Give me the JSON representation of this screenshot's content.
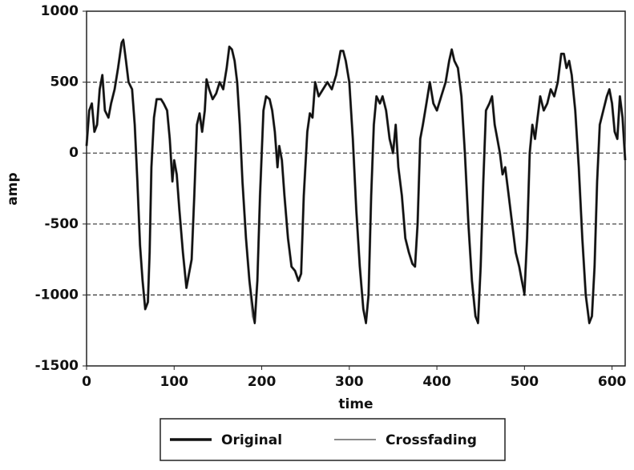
{
  "chart_data": {
    "type": "line",
    "xlabel": "time",
    "ylabel": "amp",
    "xlim": [
      0,
      615
    ],
    "ylim": [
      -1500,
      1000
    ],
    "xticks": [
      0,
      100,
      200,
      300,
      400,
      500,
      600
    ],
    "yticks": [
      -1500,
      -1000,
      -500,
      0,
      500,
      1000
    ],
    "grid": true,
    "legend": "bottom",
    "x": [
      0,
      3,
      6,
      9,
      12,
      15,
      18,
      21,
      25,
      28,
      32,
      36,
      40,
      42,
      45,
      48,
      52,
      55,
      58,
      61,
      64,
      67,
      70,
      72,
      74,
      77,
      80,
      85,
      88,
      92,
      95,
      98,
      100,
      103,
      106,
      110,
      114,
      117,
      120,
      123,
      126,
      129,
      132,
      135,
      137,
      140,
      144,
      148,
      152,
      156,
      160,
      163,
      166,
      169,
      172,
      175,
      178,
      182,
      186,
      190,
      192,
      195,
      198,
      202,
      205,
      209,
      212,
      215,
      218,
      220,
      223,
      226,
      230,
      234,
      238,
      242,
      245,
      248,
      252,
      255,
      258,
      261,
      265,
      270,
      275,
      280,
      285,
      290,
      293,
      296,
      300,
      304,
      308,
      312,
      316,
      319,
      322,
      325,
      328,
      331,
      335,
      338,
      342,
      346,
      350,
      353,
      356,
      360,
      364,
      368,
      372,
      375,
      378,
      381,
      384,
      388,
      392,
      396,
      400,
      405,
      410,
      414,
      417,
      420,
      424,
      428,
      432,
      436,
      440,
      444,
      447,
      450,
      453,
      456,
      460,
      463,
      466,
      469,
      472,
      475,
      478,
      482,
      486,
      490,
      494,
      497,
      500,
      503,
      506,
      509,
      512,
      515,
      518,
      522,
      526,
      530,
      534,
      538,
      542,
      545,
      548,
      551,
      554,
      558,
      562,
      566,
      570,
      574,
      577,
      580,
      583,
      586,
      590,
      594,
      597,
      600,
      603,
      606,
      609,
      612,
      615
    ],
    "series": [
      {
        "name": "Crossfading",
        "color": "#8a8a8a",
        "values": [
          50,
          300,
          350,
          150,
          200,
          450,
          550,
          300,
          250,
          350,
          450,
          600,
          770,
          790,
          650,
          500,
          450,
          200,
          -200,
          -650,
          -900,
          -1100,
          -1050,
          -700,
          -100,
          250,
          380,
          380,
          350,
          300,
          100,
          -200,
          -50,
          -150,
          -400,
          -700,
          -950,
          -850,
          -750,
          -300,
          200,
          280,
          150,
          300,
          520,
          450,
          380,
          420,
          500,
          450,
          600,
          750,
          730,
          650,
          500,
          200,
          -200,
          -600,
          -900,
          -1150,
          -1190,
          -900,
          -300,
          300,
          400,
          380,
          300,
          150,
          -100,
          50,
          -50,
          -300,
          -600,
          -800,
          -830,
          -900,
          -850,
          -300,
          150,
          280,
          250,
          500,
          400,
          450,
          500,
          450,
          550,
          720,
          720,
          650,
          500,
          100,
          -400,
          -800,
          -1100,
          -1190,
          -1000,
          -300,
          200,
          400,
          350,
          400,
          300,
          100,
          0,
          200,
          -100,
          -300,
          -600,
          -700,
          -780,
          -800,
          -500,
          100,
          200,
          350,
          500,
          350,
          300,
          400,
          500,
          650,
          730,
          650,
          600,
          400,
          0,
          -500,
          -900,
          -1150,
          -1190,
          -800,
          -200,
          300,
          350,
          400,
          200,
          100,
          0,
          -150,
          -100,
          -300,
          -500,
          -700,
          -800,
          -900,
          -980,
          -600,
          0,
          200,
          100,
          250,
          400,
          300,
          350,
          450,
          400,
          500,
          700,
          700,
          600,
          650,
          550,
          300,
          -100,
          -600,
          -1000,
          -1190,
          -1150,
          -800,
          -200,
          200,
          300,
          400,
          450,
          350,
          150,
          100,
          400,
          250,
          -50
        ]
      },
      {
        "name": "Original",
        "color": "#111111",
        "values": [
          50,
          300,
          350,
          150,
          200,
          450,
          550,
          300,
          250,
          350,
          450,
          600,
          780,
          800,
          650,
          500,
          450,
          200,
          -200,
          -650,
          -900,
          -1100,
          -1050,
          -700,
          -100,
          250,
          380,
          380,
          350,
          300,
          100,
          -200,
          -50,
          -150,
          -400,
          -700,
          -950,
          -850,
          -750,
          -300,
          200,
          280,
          150,
          300,
          520,
          450,
          380,
          420,
          500,
          450,
          600,
          750,
          730,
          650,
          500,
          200,
          -200,
          -600,
          -900,
          -1100,
          -1200,
          -900,
          -300,
          300,
          400,
          380,
          300,
          150,
          -100,
          50,
          -50,
          -300,
          -600,
          -800,
          -830,
          -900,
          -850,
          -300,
          150,
          280,
          250,
          500,
          400,
          450,
          500,
          450,
          550,
          720,
          720,
          650,
          500,
          100,
          -400,
          -800,
          -1100,
          -1200,
          -1000,
          -300,
          200,
          400,
          350,
          400,
          300,
          100,
          0,
          200,
          -100,
          -300,
          -600,
          -700,
          -780,
          -800,
          -500,
          100,
          200,
          350,
          500,
          350,
          300,
          400,
          500,
          650,
          730,
          650,
          600,
          400,
          0,
          -500,
          -900,
          -1150,
          -1200,
          -800,
          -200,
          300,
          350,
          400,
          200,
          100,
          0,
          -150,
          -100,
          -300,
          -500,
          -700,
          -800,
          -900,
          -1000,
          -600,
          0,
          200,
          100,
          250,
          400,
          300,
          350,
          450,
          400,
          500,
          700,
          700,
          600,
          650,
          550,
          300,
          -100,
          -600,
          -1000,
          -1200,
          -1150,
          -800,
          -200,
          200,
          300,
          400,
          450,
          350,
          150,
          100,
          400,
          250,
          -50
        ]
      }
    ]
  }
}
